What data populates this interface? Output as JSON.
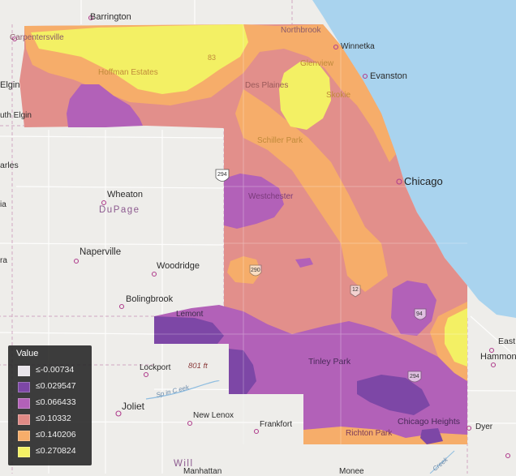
{
  "legend": {
    "title": "Value",
    "items": [
      {
        "label": "≤-0.00734",
        "color": "#e8e4ea"
      },
      {
        "label": "≤0.029547",
        "color": "#7d47a6"
      },
      {
        "label": "≤0.066433",
        "color": "#b261b8"
      },
      {
        "label": "≤0.10332",
        "color": "#e08a86"
      },
      {
        "label": "≤0.140206",
        "color": "#f6ad6a"
      },
      {
        "label": "≤0.270824",
        "color": "#f3f064"
      }
    ]
  },
  "places": {
    "barrington": "Barrington",
    "carpentersville": "Carpentersville",
    "northbrook": "Northbrook",
    "winnetka": "Winnetka",
    "hoffman": "Hoffman Estates",
    "glenview": "Glenview",
    "evanston": "Evanston",
    "elgin": "Elgin",
    "southelgin": "uth Elgin",
    "desplaines": "Des Plaines",
    "skokie": "Skokie",
    "schiller": "Schiller Park",
    "charles": "arles",
    "chicago": "Chicago",
    "wheaton": "Wheaton",
    "dupage": "DuPage",
    "westchester": "Westchester",
    "naperville": "Naperville",
    "woodridge": "Woodridge",
    "bolingbrook": "Bolingbrook",
    "lemont": "Lemont",
    "lockport": "Lockport",
    "tinley": "Tinley Park",
    "east": "East",
    "hammond": "Hammond",
    "joliet": "Joliet",
    "newlenox": "New Lenox",
    "frankfort": "Frankfort",
    "chicagoheights": "Chicago Heights",
    "dyer": "Dyer",
    "richton": "Richton Park",
    "will": "Will",
    "manhattan": "Manhattan",
    "monee": "Monee",
    "ft801": "801 ft",
    "creek": "Sp in  C eek",
    "leftcut1": "ia",
    "leftcut2": "ra",
    "creek2": "Creek",
    "hwy83": "83",
    "hwy294": "294",
    "hwy12": "12",
    "hwy94": "94",
    "hwy290": "290",
    "hwy294b": "294"
  }
}
